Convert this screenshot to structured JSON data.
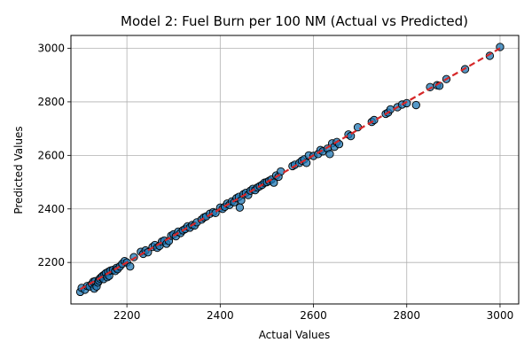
{
  "chart_data": {
    "type": "scatter",
    "title": "Model 2: Fuel Burn per 100 NM (Actual vs Predicted)",
    "xlabel": "Actual Values",
    "ylabel": "Predicted Values",
    "xlim": [
      2080,
      3040
    ],
    "ylim": [
      2045,
      3048
    ],
    "xticks": [
      2200,
      2400,
      2600,
      2800,
      3000
    ],
    "yticks": [
      2200,
      2400,
      2600,
      2800,
      3000
    ],
    "grid": true,
    "colors": {
      "points": "#1f77b4",
      "point_edge": "#000000",
      "fit_line": "#d62728"
    },
    "reference_line": {
      "style": "dashed",
      "from": [
        2100,
        2100
      ],
      "to": [
        3000,
        3000
      ]
    },
    "series": [
      {
        "x": [
          2100,
          2103,
          2110,
          2115,
          2120,
          2125,
          2128,
          2130,
          2132,
          2135,
          2138,
          2140,
          2142,
          2145,
          2148,
          2150,
          2152,
          2155,
          2158,
          2160,
          2162,
          2165,
          2170,
          2175,
          2178,
          2180,
          2185,
          2190,
          2195,
          2200,
          2207,
          2215,
          2230,
          2235,
          2240,
          2245,
          2255,
          2260,
          2265,
          2270,
          2275,
          2280,
          2285,
          2290,
          2295,
          2300,
          2305,
          2310,
          2315,
          2320,
          2325,
          2330,
          2335,
          2340,
          2345,
          2350,
          2360,
          2365,
          2370,
          2378,
          2385,
          2390,
          2400,
          2405,
          2410,
          2415,
          2420,
          2425,
          2430,
          2435,
          2440,
          2442,
          2445,
          2450,
          2455,
          2460,
          2465,
          2470,
          2475,
          2480,
          2485,
          2490,
          2495,
          2500,
          2505,
          2510,
          2515,
          2520,
          2525,
          2530,
          2555,
          2560,
          2570,
          2575,
          2580,
          2585,
          2590,
          2600,
          2610,
          2615,
          2620,
          2630,
          2635,
          2640,
          2645,
          2650,
          2655,
          2675,
          2680,
          2695,
          2725,
          2730,
          2755,
          2760,
          2765,
          2780,
          2790,
          2800,
          2820,
          2850,
          2865,
          2870,
          2885,
          2925,
          2978,
          3000
        ],
        "y": [
          2090,
          2105,
          2098,
          2112,
          2110,
          2120,
          2128,
          2102,
          2130,
          2110,
          2125,
          2132,
          2140,
          2145,
          2150,
          2138,
          2155,
          2160,
          2145,
          2165,
          2150,
          2170,
          2172,
          2168,
          2180,
          2175,
          2185,
          2195,
          2205,
          2200,
          2185,
          2220,
          2240,
          2232,
          2245,
          2238,
          2258,
          2265,
          2255,
          2262,
          2278,
          2282,
          2270,
          2280,
          2300,
          2305,
          2298,
          2315,
          2310,
          2320,
          2325,
          2335,
          2330,
          2340,
          2338,
          2350,
          2360,
          2368,
          2372,
          2382,
          2388,
          2385,
          2405,
          2400,
          2408,
          2420,
          2415,
          2428,
          2425,
          2440,
          2445,
          2405,
          2432,
          2455,
          2460,
          2452,
          2468,
          2475,
          2470,
          2480,
          2485,
          2490,
          2498,
          2500,
          2505,
          2510,
          2498,
          2525,
          2520,
          2540,
          2560,
          2565,
          2572,
          2580,
          2585,
          2572,
          2600,
          2598,
          2605,
          2620,
          2615,
          2625,
          2605,
          2645,
          2632,
          2650,
          2642,
          2678,
          2672,
          2705,
          2725,
          2732,
          2755,
          2760,
          2772,
          2780,
          2790,
          2795,
          2788,
          2855,
          2862,
          2860,
          2885,
          2922,
          2972,
          3005
        ]
      }
    ]
  }
}
